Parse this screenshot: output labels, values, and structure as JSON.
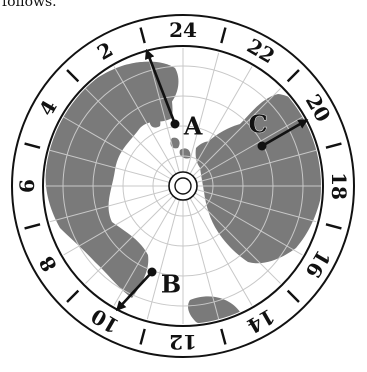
{
  "caption_fragment": "follows.",
  "dial": {
    "hour_labels": [
      {
        "text": "24",
        "angle": 0
      },
      {
        "text": "22",
        "angle": 30
      },
      {
        "text": "20",
        "angle": 60
      },
      {
        "text": "18",
        "angle": 90
      },
      {
        "text": "16",
        "angle": 120
      },
      {
        "text": "14",
        "angle": 150
      },
      {
        "text": "12",
        "angle": 180
      },
      {
        "text": "10",
        "angle": 210
      },
      {
        "text": "8",
        "angle": 240
      },
      {
        "text": "6",
        "angle": 270
      },
      {
        "text": "4",
        "angle": 300
      },
      {
        "text": "2",
        "angle": 330
      }
    ],
    "separator_angles": [
      345,
      15,
      45,
      75,
      105,
      135,
      165,
      195,
      225,
      255,
      285,
      315
    ]
  },
  "points": [
    {
      "label": "A",
      "arrow_to_angle": 345
    },
    {
      "label": "B",
      "arrow_to_angle": 208
    },
    {
      "label": "C",
      "arrow_to_angle": 62
    }
  ],
  "colors": {
    "land": "#7a7a7a",
    "ocean": "#ffffff",
    "grid": "#c8c8c8",
    "ink": "#111111"
  }
}
